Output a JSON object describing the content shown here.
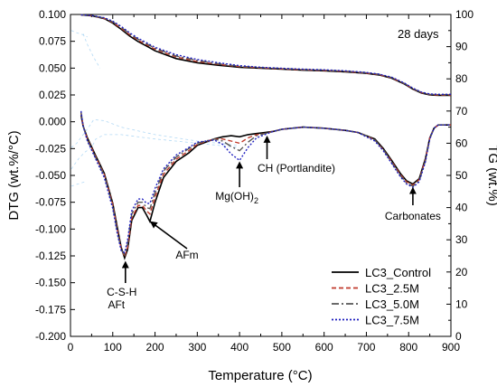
{
  "chart_data": {
    "type": "line",
    "annotation_title": "28 days",
    "xlabel": "Temperature (°C)",
    "ylabel_left": "DTG (wt.%/°C)",
    "ylabel_right": "TG (wt.%)",
    "xlim": [
      0,
      900
    ],
    "ylim_left": [
      -0.2,
      0.1
    ],
    "ylim_right": [
      0,
      100
    ],
    "x_ticks": [
      0,
      100,
      200,
      300,
      400,
      500,
      600,
      700,
      800,
      900
    ],
    "y_left_ticks": [
      0.1,
      0.075,
      0.05,
      0.025,
      0.0,
      -0.025,
      -0.05,
      -0.075,
      -0.1,
      -0.125,
      -0.15,
      -0.175,
      -0.2
    ],
    "y_left_tick_labels": [
      "0.100",
      "0.075",
      "0.050",
      "0.025",
      "0.000",
      "-0.025",
      "-0.050",
      "-0.075",
      "-0.100",
      "-0.125",
      "-0.150",
      "-0.175",
      "-0.200"
    ],
    "y_right_ticks": [
      0,
      10,
      20,
      30,
      40,
      50,
      60,
      70,
      80,
      90,
      100
    ],
    "legend_position": "bottom-right",
    "annotations": [
      {
        "label": "C-S-H",
        "x": 130,
        "y": -0.128
      },
      {
        "label": "AFt",
        "x": 130,
        "y": -0.128
      },
      {
        "label": "AFm",
        "x": 185,
        "y": -0.092
      },
      {
        "label": "Mg(OH)",
        "subscript": "2",
        "x": 400,
        "y": -0.036
      },
      {
        "label": "CH (Portlandite)",
        "x": 465,
        "y": -0.012
      },
      {
        "label": "Carbonates",
        "x": 810,
        "y": -0.059
      }
    ],
    "series": [
      {
        "name": "LC3_Control",
        "color": "#000000",
        "dash": "none",
        "tg_x": [
          25,
          50,
          80,
          100,
          120,
          140,
          160,
          180,
          200,
          250,
          300,
          350,
          400,
          450,
          500,
          550,
          600,
          650,
          700,
          730,
          760,
          790,
          810,
          830,
          850,
          870,
          900
        ],
        "tg_y": [
          99.9,
          99.6,
          98.7,
          97.3,
          95.4,
          93.3,
          91.6,
          90.2,
          88.7,
          86.3,
          85.0,
          84.2,
          83.6,
          83.3,
          83.0,
          82.7,
          82.5,
          82.2,
          81.7,
          81.2,
          80.2,
          78.4,
          76.8,
          75.6,
          75.0,
          74.9,
          74.9
        ],
        "dtg_x": [
          25,
          30,
          40,
          60,
          80,
          100,
          110,
          120,
          128,
          135,
          145,
          160,
          170,
          180,
          188,
          200,
          220,
          250,
          280,
          300,
          340,
          360,
          380,
          400,
          420,
          440,
          460,
          480,
          500,
          550,
          600,
          650,
          680,
          700,
          720,
          740,
          760,
          780,
          795,
          810,
          825,
          840,
          850,
          860,
          870,
          880,
          890,
          900
        ],
        "dtg_y": [
          0.006,
          -0.004,
          -0.015,
          -0.032,
          -0.048,
          -0.076,
          -0.097,
          -0.117,
          -0.127,
          -0.119,
          -0.092,
          -0.08,
          -0.08,
          -0.087,
          -0.093,
          -0.075,
          -0.052,
          -0.037,
          -0.029,
          -0.022,
          -0.016,
          -0.014,
          -0.013,
          -0.014,
          -0.012,
          -0.011,
          -0.01,
          -0.009,
          -0.007,
          -0.005,
          -0.006,
          -0.008,
          -0.01,
          -0.013,
          -0.016,
          -0.025,
          -0.036,
          -0.048,
          -0.055,
          -0.058,
          -0.053,
          -0.034,
          -0.015,
          -0.006,
          -0.003,
          -0.003,
          -0.003,
          -0.003
        ]
      },
      {
        "name": "LC3_2.5M",
        "color": "#c0392b",
        "dash": "5,3",
        "tg_x": [
          25,
          50,
          80,
          100,
          120,
          140,
          160,
          180,
          200,
          250,
          300,
          350,
          400,
          450,
          500,
          550,
          600,
          650,
          700,
          730,
          760,
          790,
          810,
          830,
          850,
          870,
          900
        ],
        "tg_y": [
          99.9,
          99.6,
          98.8,
          97.5,
          95.7,
          93.7,
          92.0,
          90.6,
          89.2,
          86.8,
          85.4,
          84.5,
          83.8,
          83.4,
          83.1,
          82.8,
          82.6,
          82.3,
          81.8,
          81.3,
          80.3,
          78.5,
          76.9,
          75.7,
          75.1,
          75.0,
          75.0
        ],
        "dtg_x": [
          25,
          30,
          40,
          60,
          80,
          100,
          110,
          120,
          128,
          135,
          145,
          160,
          170,
          180,
          188,
          200,
          220,
          250,
          280,
          300,
          340,
          360,
          380,
          400,
          420,
          440,
          460,
          480,
          500,
          550,
          600,
          650,
          680,
          700,
          720,
          740,
          760,
          780,
          795,
          810,
          825,
          840,
          850,
          860,
          870,
          880,
          890,
          900
        ],
        "dtg_y": [
          0.008,
          -0.004,
          -0.016,
          -0.033,
          -0.049,
          -0.077,
          -0.099,
          -0.118,
          -0.126,
          -0.117,
          -0.09,
          -0.078,
          -0.078,
          -0.083,
          -0.086,
          -0.07,
          -0.049,
          -0.035,
          -0.027,
          -0.021,
          -0.016,
          -0.016,
          -0.018,
          -0.02,
          -0.015,
          -0.012,
          -0.011,
          -0.009,
          -0.007,
          -0.005,
          -0.006,
          -0.008,
          -0.01,
          -0.013,
          -0.017,
          -0.026,
          -0.037,
          -0.049,
          -0.056,
          -0.059,
          -0.054,
          -0.035,
          -0.015,
          -0.006,
          -0.003,
          -0.003,
          -0.003,
          -0.003
        ]
      },
      {
        "name": "LC3_5.0M",
        "color": "#555555",
        "dash": "8,3,2,3",
        "tg_x": [
          25,
          50,
          80,
          100,
          120,
          140,
          160,
          180,
          200,
          250,
          300,
          350,
          400,
          450,
          500,
          550,
          600,
          650,
          700,
          730,
          760,
          790,
          810,
          830,
          850,
          870,
          900
        ],
        "tg_y": [
          99.9,
          99.6,
          98.9,
          97.7,
          96.0,
          94.0,
          92.3,
          90.9,
          89.5,
          87.1,
          85.7,
          84.7,
          83.9,
          83.5,
          83.2,
          82.9,
          82.7,
          82.4,
          81.9,
          81.4,
          80.4,
          78.6,
          77.0,
          75.8,
          75.2,
          75.1,
          75.1
        ],
        "dtg_x": [
          25,
          30,
          40,
          60,
          80,
          100,
          110,
          120,
          128,
          135,
          145,
          160,
          170,
          180,
          188,
          200,
          220,
          250,
          280,
          300,
          340,
          360,
          380,
          400,
          420,
          440,
          460,
          480,
          500,
          550,
          600,
          650,
          680,
          700,
          720,
          740,
          760,
          780,
          795,
          810,
          825,
          840,
          850,
          860,
          870,
          880,
          890,
          900
        ],
        "dtg_y": [
          0.009,
          -0.004,
          -0.017,
          -0.034,
          -0.05,
          -0.079,
          -0.101,
          -0.119,
          -0.124,
          -0.114,
          -0.086,
          -0.075,
          -0.075,
          -0.08,
          -0.081,
          -0.066,
          -0.046,
          -0.033,
          -0.025,
          -0.02,
          -0.016,
          -0.018,
          -0.023,
          -0.027,
          -0.019,
          -0.013,
          -0.011,
          -0.009,
          -0.007,
          -0.005,
          -0.006,
          -0.008,
          -0.01,
          -0.013,
          -0.017,
          -0.026,
          -0.038,
          -0.05,
          -0.057,
          -0.06,
          -0.055,
          -0.036,
          -0.016,
          -0.006,
          -0.003,
          -0.003,
          -0.003,
          -0.003
        ]
      },
      {
        "name": "LC3_7.5M",
        "color": "#1f1fbf",
        "dash": "2,2",
        "tg_x": [
          25,
          50,
          80,
          100,
          120,
          140,
          160,
          180,
          200,
          250,
          300,
          350,
          400,
          450,
          500,
          550,
          600,
          650,
          700,
          730,
          760,
          790,
          810,
          830,
          850,
          870,
          900
        ],
        "tg_y": [
          99.9,
          99.7,
          99.0,
          97.9,
          96.3,
          94.3,
          92.6,
          91.2,
          89.8,
          87.5,
          86.0,
          85.0,
          84.1,
          83.6,
          83.3,
          83.0,
          82.8,
          82.5,
          82.0,
          81.5,
          80.5,
          78.7,
          77.1,
          75.9,
          75.3,
          75.2,
          75.2
        ],
        "dtg_x": [
          25,
          30,
          40,
          60,
          80,
          100,
          110,
          120,
          128,
          135,
          145,
          160,
          170,
          180,
          188,
          200,
          220,
          250,
          280,
          300,
          340,
          360,
          380,
          400,
          420,
          440,
          460,
          480,
          500,
          550,
          600,
          650,
          680,
          700,
          720,
          740,
          760,
          780,
          795,
          810,
          825,
          840,
          850,
          860,
          870,
          880,
          890,
          900
        ],
        "dtg_y": [
          0.01,
          -0.004,
          -0.018,
          -0.035,
          -0.052,
          -0.081,
          -0.103,
          -0.12,
          -0.122,
          -0.11,
          -0.083,
          -0.072,
          -0.072,
          -0.076,
          -0.076,
          -0.062,
          -0.044,
          -0.031,
          -0.024,
          -0.019,
          -0.017,
          -0.021,
          -0.03,
          -0.036,
          -0.024,
          -0.015,
          -0.012,
          -0.009,
          -0.007,
          -0.005,
          -0.006,
          -0.008,
          -0.01,
          -0.014,
          -0.018,
          -0.027,
          -0.039,
          -0.051,
          -0.058,
          -0.061,
          -0.056,
          -0.037,
          -0.016,
          -0.006,
          -0.003,
          -0.003,
          -0.003,
          -0.003
        ]
      }
    ],
    "faint_traces_color": "#9fd0f2",
    "faint_traces": [
      {
        "x": [
          2,
          15,
          30,
          45,
          55,
          80,
          120,
          200,
          300,
          400
        ],
        "y": [
          -0.024,
          -0.02,
          -0.012,
          -0.004,
          0.002,
          0.001,
          -0.005,
          -0.012,
          -0.018,
          -0.022
        ]
      },
      {
        "x": [
          2,
          20,
          35,
          50,
          60,
          80,
          120,
          200,
          300,
          400
        ],
        "y": [
          -0.044,
          -0.034,
          -0.028,
          -0.024,
          -0.016,
          -0.012,
          -0.012,
          -0.016,
          -0.02,
          -0.024
        ]
      },
      {
        "x": [
          2,
          15,
          30,
          40
        ],
        "y": [
          0.085,
          0.083,
          0.081,
          0.079
        ]
      },
      {
        "x": [
          30,
          40,
          55,
          70
        ],
        "y": [
          0.082,
          0.072,
          0.06,
          0.05
        ]
      },
      {
        "x": [
          2,
          10,
          25,
          35
        ],
        "y": [
          -0.06,
          -0.059,
          -0.057,
          -0.056
        ]
      }
    ]
  }
}
